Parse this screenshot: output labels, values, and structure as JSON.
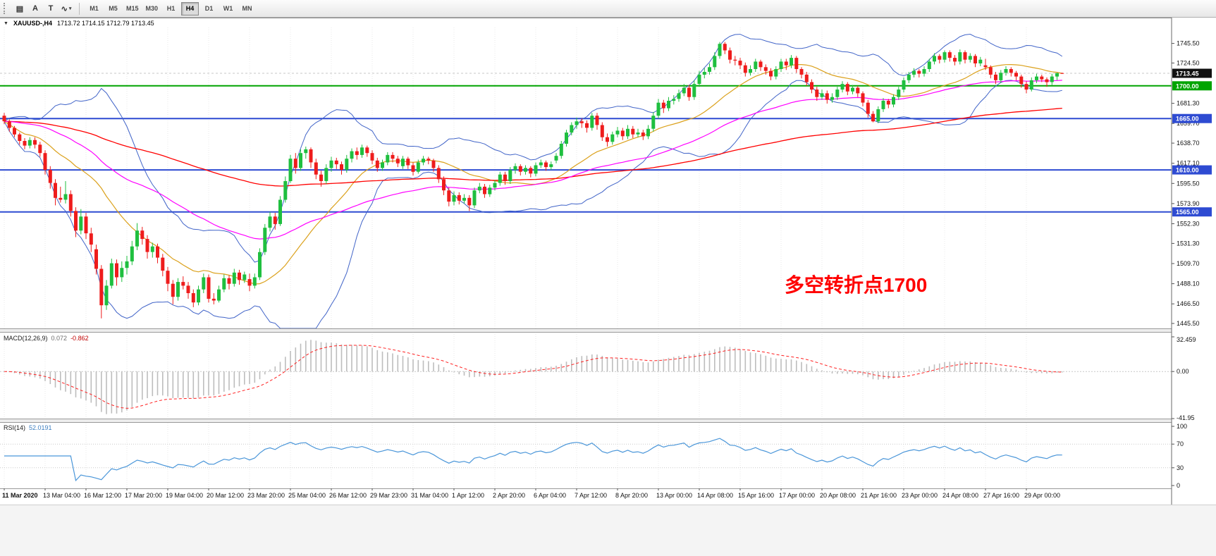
{
  "toolbar": {
    "tools": [
      {
        "id": "chart-grid",
        "glyph": "▤",
        "caret": ""
      },
      {
        "id": "arrow-pointer",
        "glyph": "A",
        "caret": ""
      },
      {
        "id": "text-cursor",
        "glyph": "T",
        "caret": ""
      },
      {
        "id": "polyline",
        "glyph": "∿",
        "caret": "▾"
      }
    ],
    "timeframes": [
      {
        "label": "M1",
        "active": false
      },
      {
        "label": "M5",
        "active": false
      },
      {
        "label": "M15",
        "active": false
      },
      {
        "label": "M30",
        "active": false
      },
      {
        "label": "H1",
        "active": false
      },
      {
        "label": "H4",
        "active": true
      },
      {
        "label": "D1",
        "active": false
      },
      {
        "label": "W1",
        "active": false
      },
      {
        "label": "MN",
        "active": false
      }
    ]
  },
  "chart": {
    "header": {
      "dropdown_glyph": "▼",
      "symbol": "XAUUSD-,H4",
      "ohlc": "1713.72 1714.15 1712.79 1713.45"
    },
    "annotation": {
      "text": "多空转折点1700",
      "color": "#ff0000"
    },
    "hlines": [
      {
        "price": 1700.0,
        "color": "#00a400",
        "width": 2
      },
      {
        "price": 1665.0,
        "color": "#2e4bd2",
        "width": 2
      },
      {
        "price": 1610.0,
        "color": "#2e4bd2",
        "width": 2
      },
      {
        "price": 1565.0,
        "color": "#2e4bd2",
        "width": 2
      }
    ],
    "price_axis": {
      "labels": [
        1745.5,
        1724.5,
        1681.3,
        1659.7,
        1638.7,
        1617.1,
        1595.5,
        1573.9,
        1552.3,
        1531.3,
        1509.7,
        1488.1,
        1466.5,
        1445.5
      ],
      "badges": [
        {
          "text": "1713.45",
          "price": 1713.45,
          "bg": "#111111"
        },
        {
          "text": "1700.00",
          "price": 1700.0,
          "bg": "#00a400"
        },
        {
          "text": "1665.00",
          "price": 1665.0,
          "bg": "#2e4bd2"
        },
        {
          "text": "1610.00",
          "price": 1610.0,
          "bg": "#2e4bd2"
        },
        {
          "text": "1565.00",
          "price": 1565.0,
          "bg": "#2e4bd2"
        }
      ]
    },
    "colors": {
      "up": "#1fbf3f",
      "down": "#ee1c1c",
      "bands": "#4164c8",
      "bb_mid": "#dba11c",
      "ma_mid": "#ff00ff",
      "ma_slow": "#ff0000",
      "macd_hist": "#bdbdbd",
      "macd_signal": "#ff2020",
      "rsi": "#4a96d9"
    }
  },
  "macd_panel": {
    "label": "MACD(12,26,9)",
    "value_main": "0.072",
    "value_signal": "-0.862",
    "axis": [
      "32.459",
      "0.00",
      "-41.95"
    ]
  },
  "rsi_panel": {
    "label": "RSI(14)",
    "value": "52.0191",
    "axis": [
      100,
      70,
      30,
      0
    ],
    "levels": [
      70,
      30
    ]
  },
  "chart_data": {
    "type": "candlestick",
    "symbol": "XAUUSD",
    "timeframe": "H4",
    "ohlc_current": {
      "open": 1713.72,
      "high": 1714.15,
      "low": 1712.79,
      "close": 1713.45
    },
    "ylim": [
      1445.5,
      1745.5
    ],
    "indicators": {
      "bollinger_period": 20,
      "bollinger_dev": 2,
      "ma_mid_period": 55,
      "ma_slow_period": 150,
      "macd_params": [
        12,
        26,
        9
      ],
      "macd_values": [
        0.072,
        -0.862
      ],
      "rsi_period": 14,
      "rsi_value": 52.0191
    },
    "x_ticks": {
      "every": 8,
      "labels": [
        "11 Mar 2020",
        "13 Mar 04:00",
        "16 Mar 12:00",
        "17 Mar 20:00",
        "19 Mar 04:00",
        "20 Mar 12:00",
        "23 Mar 20:00",
        "25 Mar 04:00",
        "26 Mar 12:00",
        "29 Mar 23:00",
        "31 Mar 04:00",
        "1 Apr 12:00",
        "2 Apr 20:00",
        "6 Apr 04:00",
        "7 Apr 12:00",
        "8 Apr 20:00",
        "13 Apr 00:00",
        "14 Apr 08:00",
        "15 Apr 16:00",
        "17 Apr 00:00",
        "20 Apr 08:00",
        "21 Apr 16:00",
        "23 Apr 00:00",
        "24 Apr 08:00",
        "27 Apr 16:00",
        "29 Apr 00:00"
      ]
    },
    "candles": [
      [
        1668,
        1671,
        1659,
        1662
      ],
      [
        1662,
        1664,
        1651,
        1655
      ],
      [
        1655,
        1657,
        1645,
        1648
      ],
      [
        1648,
        1650,
        1637,
        1641
      ],
      [
        1641,
        1644,
        1632,
        1636
      ],
      [
        1636,
        1645,
        1633,
        1642
      ],
      [
        1642,
        1645,
        1633,
        1637
      ],
      [
        1637,
        1640,
        1624,
        1628
      ],
      [
        1628,
        1631,
        1605,
        1610
      ],
      [
        1610,
        1614,
        1590,
        1596
      ],
      [
        1596,
        1600,
        1572,
        1580
      ],
      [
        1580,
        1592,
        1575,
        1578
      ],
      [
        1578,
        1598,
        1574,
        1584
      ],
      [
        1584,
        1588,
        1560,
        1566
      ],
      [
        1566,
        1570,
        1538,
        1545
      ],
      [
        1545,
        1568,
        1541,
        1560
      ],
      [
        1560,
        1564,
        1536,
        1542
      ],
      [
        1542,
        1548,
        1522,
        1530
      ],
      [
        1525,
        1530,
        1498,
        1504
      ],
      [
        1504,
        1508,
        1451,
        1465
      ],
      [
        1465,
        1492,
        1460,
        1486
      ],
      [
        1486,
        1515,
        1483,
        1510
      ],
      [
        1510,
        1514,
        1486,
        1495
      ],
      [
        1495,
        1512,
        1490,
        1505
      ],
      [
        1505,
        1518,
        1498,
        1512
      ],
      [
        1512,
        1534,
        1508,
        1528
      ],
      [
        1528,
        1553,
        1524,
        1545
      ],
      [
        1545,
        1549,
        1530,
        1536
      ],
      [
        1536,
        1540,
        1515,
        1522
      ],
      [
        1522,
        1532,
        1516,
        1528
      ],
      [
        1528,
        1531,
        1510,
        1516
      ],
      [
        1516,
        1520,
        1496,
        1502
      ],
      [
        1502,
        1506,
        1480,
        1488
      ],
      [
        1488,
        1492,
        1466,
        1474
      ],
      [
        1474,
        1494,
        1470,
        1490
      ],
      [
        1490,
        1496,
        1482,
        1486
      ],
      [
        1486,
        1490,
        1472,
        1478
      ],
      [
        1478,
        1482,
        1463,
        1468
      ],
      [
        1468,
        1486,
        1465,
        1482
      ],
      [
        1482,
        1499,
        1478,
        1495
      ],
      [
        1495,
        1498,
        1468,
        1472
      ],
      [
        1472,
        1478,
        1466,
        1470
      ],
      [
        1470,
        1486,
        1468,
        1482
      ],
      [
        1482,
        1498,
        1479,
        1494
      ],
      [
        1494,
        1497,
        1482,
        1488
      ],
      [
        1488,
        1504,
        1485,
        1500
      ],
      [
        1500,
        1503,
        1487,
        1492
      ],
      [
        1492,
        1501,
        1489,
        1498
      ],
      [
        1493,
        1499,
        1480,
        1486
      ],
      [
        1486,
        1499,
        1483,
        1495
      ],
      [
        1495,
        1526,
        1492,
        1522
      ],
      [
        1522,
        1552,
        1519,
        1548
      ],
      [
        1548,
        1565,
        1544,
        1560
      ],
      [
        1560,
        1564,
        1546,
        1552
      ],
      [
        1552,
        1582,
        1550,
        1578
      ],
      [
        1578,
        1603,
        1575,
        1598
      ],
      [
        1598,
        1626,
        1596,
        1622
      ],
      [
        1622,
        1628,
        1606,
        1612
      ],
      [
        1612,
        1632,
        1609,
        1628
      ],
      [
        1628,
        1635,
        1622,
        1632
      ],
      [
        1632,
        1634,
        1612,
        1618
      ],
      [
        1618,
        1622,
        1600,
        1605
      ],
      [
        1605,
        1609,
        1592,
        1598
      ],
      [
        1598,
        1616,
        1595,
        1612
      ],
      [
        1612,
        1624,
        1608,
        1620
      ],
      [
        1620,
        1623,
        1611,
        1616
      ],
      [
        1616,
        1619,
        1605,
        1610
      ],
      [
        1610,
        1626,
        1607,
        1622
      ],
      [
        1622,
        1633,
        1618,
        1630
      ],
      [
        1630,
        1634,
        1621,
        1626
      ],
      [
        1626,
        1637,
        1623,
        1634
      ],
      [
        1634,
        1636,
        1624,
        1628
      ],
      [
        1628,
        1631,
        1616,
        1620
      ],
      [
        1620,
        1623,
        1608,
        1612
      ],
      [
        1612,
        1621,
        1609,
        1618
      ],
      [
        1618,
        1629,
        1615,
        1626
      ],
      [
        1626,
        1629,
        1618,
        1622
      ],
      [
        1622,
        1625,
        1613,
        1617
      ],
      [
        1614,
        1625,
        1611,
        1622
      ],
      [
        1622,
        1624,
        1611,
        1615
      ],
      [
        1615,
        1618,
        1604,
        1608
      ],
      [
        1608,
        1621,
        1606,
        1618
      ],
      [
        1618,
        1625,
        1615,
        1622
      ],
      [
        1622,
        1624,
        1616,
        1620
      ],
      [
        1620,
        1622,
        1608,
        1612
      ],
      [
        1612,
        1615,
        1596,
        1600
      ],
      [
        1600,
        1603,
        1583,
        1588
      ],
      [
        1588,
        1591,
        1571,
        1576
      ],
      [
        1576,
        1587,
        1572,
        1583
      ],
      [
        1583,
        1586,
        1573,
        1577
      ],
      [
        1577,
        1584,
        1574,
        1580
      ],
      [
        1580,
        1583,
        1566,
        1572
      ],
      [
        1572,
        1591,
        1569,
        1588
      ],
      [
        1588,
        1596,
        1585,
        1592
      ],
      [
        1592,
        1595,
        1580,
        1584
      ],
      [
        1584,
        1594,
        1581,
        1591
      ],
      [
        1591,
        1599,
        1588,
        1596
      ],
      [
        1596,
        1608,
        1593,
        1605
      ],
      [
        1605,
        1608,
        1594,
        1598
      ],
      [
        1598,
        1613,
        1595,
        1610
      ],
      [
        1610,
        1617,
        1606,
        1614
      ],
      [
        1614,
        1616,
        1604,
        1608
      ],
      [
        1608,
        1615,
        1605,
        1612
      ],
      [
        1612,
        1614,
        1602,
        1606
      ],
      [
        1606,
        1618,
        1603,
        1615
      ],
      [
        1615,
        1621,
        1612,
        1618
      ],
      [
        1618,
        1620,
        1609,
        1613
      ],
      [
        1613,
        1619,
        1610,
        1616
      ],
      [
        1620,
        1628,
        1617,
        1625
      ],
      [
        1625,
        1641,
        1622,
        1638
      ],
      [
        1638,
        1653,
        1635,
        1650
      ],
      [
        1650,
        1661,
        1647,
        1658
      ],
      [
        1658,
        1666,
        1654,
        1662
      ],
      [
        1662,
        1665,
        1655,
        1660
      ],
      [
        1660,
        1663,
        1650,
        1655
      ],
      [
        1655,
        1671,
        1652,
        1668
      ],
      [
        1668,
        1671,
        1653,
        1658
      ],
      [
        1658,
        1661,
        1641,
        1645
      ],
      [
        1645,
        1649,
        1635,
        1640
      ],
      [
        1640,
        1651,
        1637,
        1648
      ],
      [
        1648,
        1656,
        1645,
        1652
      ],
      [
        1652,
        1655,
        1642,
        1646
      ],
      [
        1646,
        1658,
        1643,
        1654
      ],
      [
        1654,
        1657,
        1644,
        1648
      ],
      [
        1648,
        1654,
        1645,
        1650
      ],
      [
        1650,
        1653,
        1642,
        1646
      ],
      [
        1646,
        1658,
        1643,
        1654
      ],
      [
        1654,
        1672,
        1651,
        1668
      ],
      [
        1668,
        1686,
        1665,
        1682
      ],
      [
        1682,
        1685,
        1671,
        1676
      ],
      [
        1676,
        1688,
        1673,
        1684
      ],
      [
        1684,
        1690,
        1680,
        1686
      ],
      [
        1686,
        1696,
        1683,
        1692
      ],
      [
        1692,
        1702,
        1689,
        1698
      ],
      [
        1698,
        1701,
        1684,
        1688
      ],
      [
        1688,
        1706,
        1685,
        1702
      ],
      [
        1702,
        1716,
        1699,
        1712
      ],
      [
        1712,
        1719,
        1708,
        1715
      ],
      [
        1715,
        1724,
        1712,
        1720
      ],
      [
        1720,
        1736,
        1717,
        1732
      ],
      [
        1732,
        1747,
        1729,
        1745
      ],
      [
        1745,
        1747,
        1734,
        1738
      ],
      [
        1738,
        1741,
        1724,
        1728
      ],
      [
        1728,
        1732,
        1722,
        1727
      ],
      [
        1727,
        1730,
        1718,
        1722
      ],
      [
        1722,
        1725,
        1710,
        1714
      ],
      [
        1714,
        1722,
        1711,
        1718
      ],
      [
        1718,
        1729,
        1715,
        1726
      ],
      [
        1726,
        1728,
        1716,
        1720
      ],
      [
        1720,
        1723,
        1712,
        1716
      ],
      [
        1716,
        1719,
        1706,
        1710
      ],
      [
        1710,
        1721,
        1707,
        1718
      ],
      [
        1718,
        1729,
        1715,
        1726
      ],
      [
        1726,
        1729,
        1717,
        1722
      ],
      [
        1722,
        1733,
        1719,
        1730
      ],
      [
        1730,
        1732,
        1714,
        1718
      ],
      [
        1718,
        1720,
        1708,
        1712
      ],
      [
        1712,
        1715,
        1700,
        1704
      ],
      [
        1704,
        1707,
        1692,
        1696
      ],
      [
        1696,
        1699,
        1684,
        1688
      ],
      [
        1688,
        1696,
        1685,
        1692
      ],
      [
        1692,
        1695,
        1681,
        1685
      ],
      [
        1685,
        1692,
        1682,
        1688
      ],
      [
        1688,
        1699,
        1685,
        1696
      ],
      [
        1696,
        1705,
        1693,
        1702
      ],
      [
        1702,
        1704,
        1690,
        1694
      ],
      [
        1694,
        1701,
        1691,
        1698
      ],
      [
        1698,
        1700,
        1688,
        1692
      ],
      [
        1692,
        1694,
        1678,
        1682
      ],
      [
        1682,
        1685,
        1666,
        1670
      ],
      [
        1670,
        1673,
        1661,
        1662
      ],
      [
        1662,
        1678,
        1660,
        1675
      ],
      [
        1675,
        1687,
        1672,
        1684
      ],
      [
        1684,
        1686,
        1676,
        1680
      ],
      [
        1680,
        1691,
        1677,
        1688
      ],
      [
        1688,
        1699,
        1685,
        1696
      ],
      [
        1696,
        1709,
        1693,
        1706
      ],
      [
        1706,
        1715,
        1703,
        1712
      ],
      [
        1712,
        1719,
        1709,
        1716
      ],
      [
        1716,
        1718,
        1709,
        1713
      ],
      [
        1713,
        1721,
        1710,
        1718
      ],
      [
        1718,
        1729,
        1715,
        1726
      ],
      [
        1726,
        1735,
        1723,
        1732
      ],
      [
        1732,
        1734,
        1724,
        1728
      ],
      [
        1728,
        1738,
        1725,
        1736
      ],
      [
        1736,
        1738,
        1726,
        1730
      ],
      [
        1730,
        1733,
        1722,
        1726
      ],
      [
        1726,
        1739,
        1723,
        1736
      ],
      [
        1736,
        1738,
        1724,
        1728
      ],
      [
        1728,
        1735,
        1725,
        1732
      ],
      [
        1732,
        1734,
        1720,
        1724
      ],
      [
        1724,
        1731,
        1721,
        1728
      ],
      [
        1722,
        1729,
        1717,
        1720
      ],
      [
        1720,
        1722,
        1708,
        1712
      ],
      [
        1712,
        1715,
        1702,
        1706
      ],
      [
        1706,
        1717,
        1703,
        1714
      ],
      [
        1714,
        1721,
        1711,
        1718
      ],
      [
        1718,
        1720,
        1710,
        1714
      ],
      [
        1714,
        1716,
        1706,
        1710
      ],
      [
        1710,
        1712,
        1698,
        1702
      ],
      [
        1702,
        1705,
        1692,
        1696
      ],
      [
        1696,
        1709,
        1694,
        1706
      ],
      [
        1706,
        1713,
        1703,
        1710
      ],
      [
        1710,
        1712,
        1704,
        1707
      ],
      [
        1707,
        1709,
        1699,
        1704
      ],
      [
        1704,
        1713,
        1701,
        1710
      ],
      [
        1710,
        1714,
        1706,
        1713.7
      ],
      [
        1713.72,
        1714.15,
        1712.79,
        1713.45
      ]
    ]
  }
}
